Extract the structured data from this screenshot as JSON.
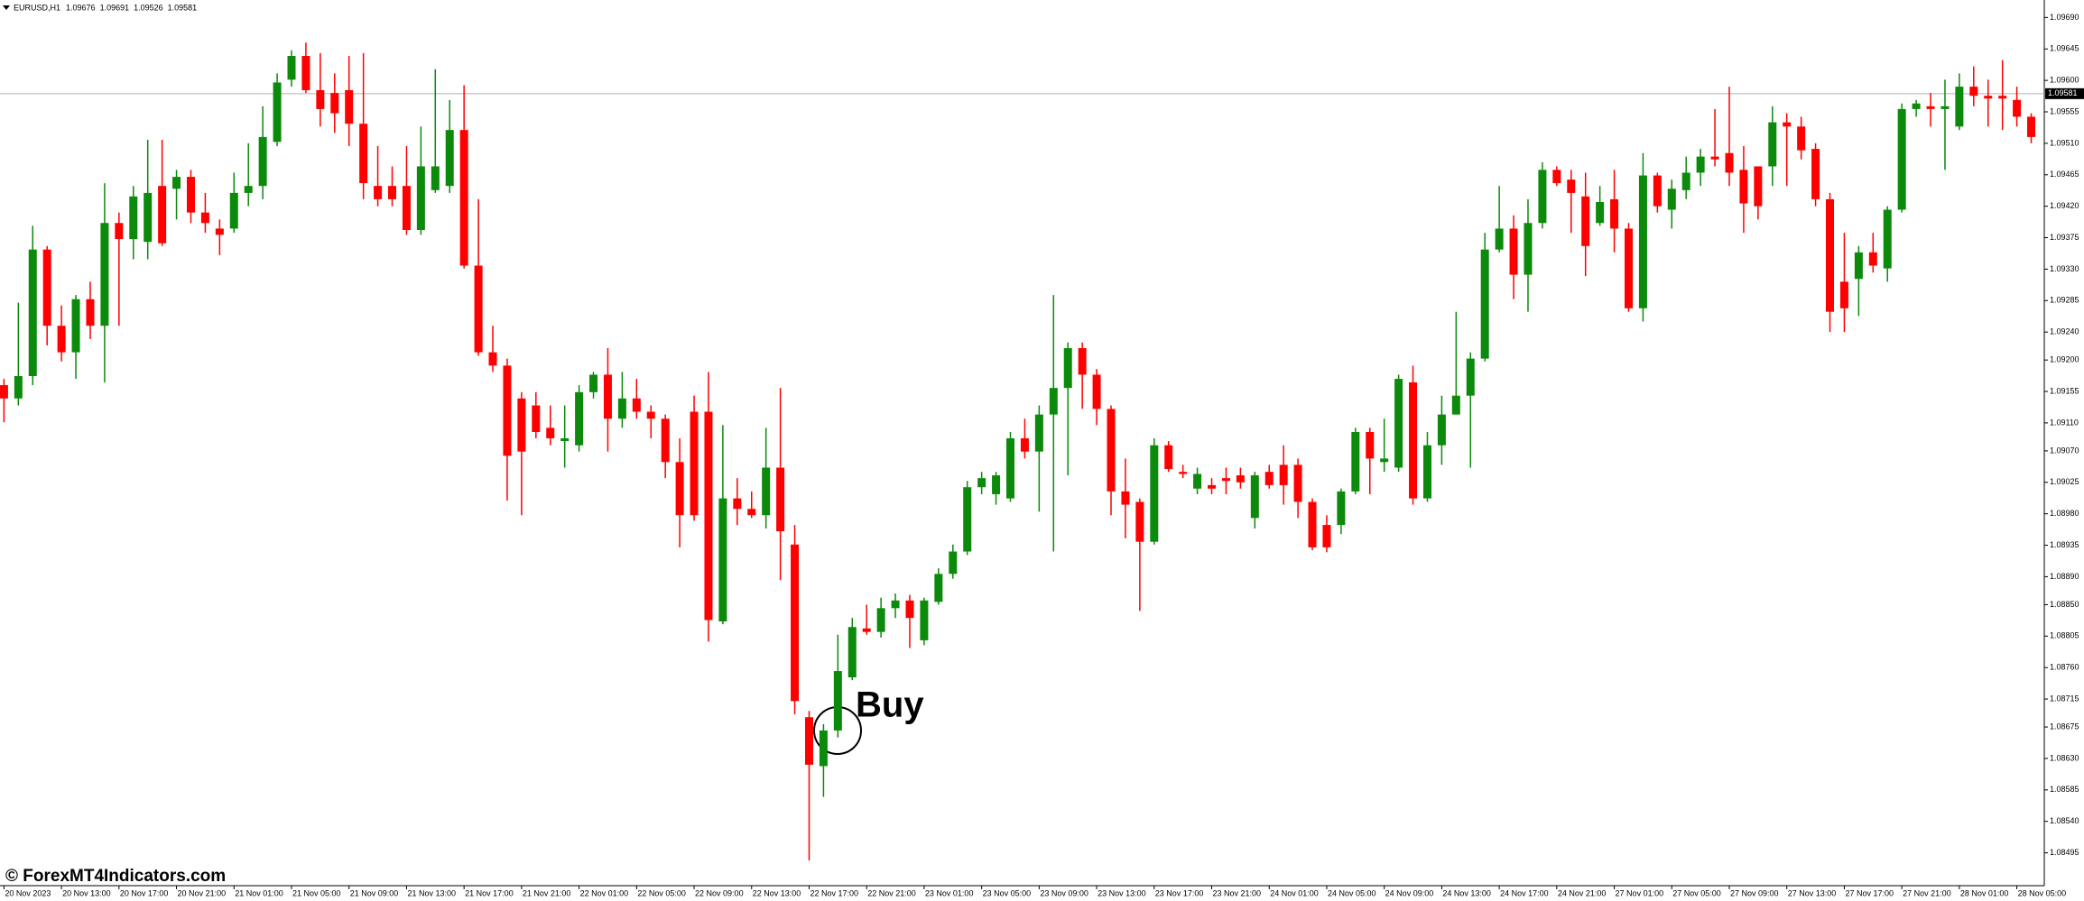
{
  "chart_data": {
    "type": "candlestick",
    "symbol": "EURUSD,H1",
    "header_values": [
      1.09676,
      1.09691,
      1.09526,
      1.09581
    ],
    "annotation": "Buy",
    "watermark": "© ForexMT4Indicators.com",
    "current_price": 1.09581,
    "up_color": "#0b8a0b",
    "down_color": "#ff0000",
    "ylim": [
      1.08448,
      1.09715
    ],
    "yticks": [
      {
        "value": 1.0969,
        "label": "1.09690"
      },
      1.09645,
      {
        "value": 1.096,
        "label": "1.09600"
      },
      1.09555,
      {
        "value": 1.0951,
        "label": "1.09510"
      },
      1.09465,
      {
        "value": 1.0942,
        "label": "1.09420"
      },
      1.09375,
      {
        "value": 1.0933,
        "label": "1.09330"
      },
      1.09285,
      {
        "value": 1.0924,
        "label": "1.09240"
      },
      {
        "value": 1.092,
        "label": "1.09200"
      },
      1.09155,
      {
        "value": 1.0911,
        "label": "1.09110"
      },
      {
        "value": 1.0907,
        "label": "1.09070"
      },
      1.09025,
      {
        "value": 1.0898,
        "label": "1.08980"
      },
      1.08935,
      {
        "value": 1.0889,
        "label": "1.08890"
      },
      {
        "value": 1.0885,
        "label": "1.08850"
      },
      1.08805,
      {
        "value": 1.0876,
        "label": "1.08760"
      },
      1.08715,
      1.08675,
      {
        "value": 1.0863,
        "label": "1.08630"
      },
      1.08585,
      {
        "value": 1.0854,
        "label": "1.08540"
      },
      1.08495
    ],
    "categories": [
      "20 Nov 2023",
      null,
      null,
      null,
      "20 Nov 13:00",
      null,
      null,
      null,
      "20 Nov 17:00",
      null,
      null,
      null,
      "20 Nov 21:00",
      null,
      null,
      null,
      "21 Nov 01:00",
      null,
      null,
      null,
      "21 Nov 05:00",
      null,
      null,
      null,
      "21 Nov 09:00",
      null,
      null,
      null,
      "21 Nov 13:00",
      null,
      null,
      null,
      "21 Nov 17:00",
      null,
      null,
      null,
      "21 Nov 21:00",
      null,
      null,
      null,
      "22 Nov 01:00",
      null,
      null,
      null,
      "22 Nov 05:00",
      null,
      null,
      null,
      "22 Nov 09:00",
      null,
      null,
      null,
      "22 Nov 13:00",
      null,
      null,
      null,
      "22 Nov 17:00",
      null,
      null,
      null,
      "22 Nov 21:00",
      null,
      null,
      null,
      "23 Nov 01:00",
      null,
      null,
      null,
      "23 Nov 05:00",
      null,
      null,
      null,
      "23 Nov 09:00",
      null,
      null,
      null,
      "23 Nov 13:00",
      null,
      null,
      null,
      "23 Nov 17:00",
      null,
      null,
      null,
      "23 Nov 21:00",
      null,
      null,
      null,
      "24 Nov 01:00",
      null,
      null,
      null,
      "24 Nov 05:00",
      null,
      null,
      null,
      "24 Nov 09:00",
      null,
      null,
      null,
      "24 Nov 13:00",
      null,
      null,
      null,
      "24 Nov 17:00",
      null,
      null,
      null,
      "24 Nov 21:00",
      null,
      null,
      null,
      "27 Nov 01:00",
      null,
      null,
      null,
      "27 Nov 05:00",
      null,
      null,
      null,
      "27 Nov 09:00",
      null,
      null,
      null,
      "27 Nov 13:00",
      null,
      null,
      null,
      "27 Nov 17:00",
      null,
      null,
      null,
      "27 Nov 21:00",
      null,
      null,
      null,
      "28 Nov 01:00",
      null,
      null,
      null,
      "28 Nov 05:00",
      null
    ],
    "ohlc": [
      [
        1.09164,
        1.09173,
        1.09111,
        1.09145
      ],
      [
        1.09145,
        1.09282,
        1.09135,
        1.09177
      ],
      [
        1.09177,
        1.09392,
        1.09164,
        1.09358
      ],
      [
        1.09358,
        1.09363,
        1.09221,
        1.09249
      ],
      [
        1.09249,
        1.09278,
        1.09198,
        1.09211
      ],
      [
        1.09211,
        1.09293,
        1.09173,
        1.09287
      ],
      [
        1.09287,
        1.09312,
        1.0923,
        1.09249
      ],
      [
        1.09249,
        1.09453,
        1.09168,
        1.09396
      ],
      [
        1.09396,
        1.09411,
        1.09249,
        1.09373
      ],
      [
        1.09373,
        1.09449,
        1.09344,
        1.09434
      ],
      [
        1.09369,
        1.09515,
        1.09344,
        1.09439
      ],
      [
        1.09449,
        1.09515,
        1.09363,
        1.09367
      ],
      [
        1.09445,
        1.09472,
        1.09401,
        1.09462
      ],
      [
        1.09462,
        1.09472,
        1.09396,
        1.09411
      ],
      [
        1.09411,
        1.09439,
        1.09382,
        1.09396
      ],
      [
        1.09388,
        1.09401,
        1.0935,
        1.09379
      ],
      [
        1.09388,
        1.09468,
        1.09382,
        1.09439
      ],
      [
        1.09439,
        1.0951,
        1.0942,
        1.09449
      ],
      [
        1.09449,
        1.09563,
        1.0943,
        1.09519
      ],
      [
        1.09512,
        1.0961,
        1.09506,
        1.09597
      ],
      [
        1.09601,
        1.09643,
        1.09591,
        1.09635
      ],
      [
        1.09635,
        1.09654,
        1.09582,
        1.09586
      ],
      [
        1.09586,
        1.09639,
        1.09534,
        1.09559
      ],
      [
        1.09582,
        1.0961,
        1.09525,
        1.09553
      ],
      [
        1.09586,
        1.09635,
        1.09506,
        1.09538
      ],
      [
        1.09538,
        1.09639,
        1.0943,
        1.09453
      ],
      [
        1.09449,
        1.09506,
        1.0942,
        1.0943
      ],
      [
        1.09449,
        1.09477,
        1.0942,
        1.0943
      ],
      [
        1.09449,
        1.09506,
        1.09379,
        1.09386
      ],
      [
        1.09386,
        1.09534,
        1.09379,
        1.09477
      ],
      [
        1.09443,
        1.09616,
        1.09439,
        1.09477
      ],
      [
        1.09449,
        1.09572,
        1.09439,
        1.09529
      ],
      [
        1.09529,
        1.09593,
        1.09331,
        1.09335
      ],
      [
        1.09335,
        1.0943,
        1.09206,
        1.09211
      ],
      [
        1.09211,
        1.09249,
        1.09183,
        1.09192
      ],
      [
        1.09192,
        1.09202,
        1.08999,
        1.09063
      ],
      [
        1.09145,
        1.09154,
        1.08978,
        1.09069
      ],
      [
        1.09135,
        1.09154,
        1.09088,
        1.09097
      ],
      [
        1.09103,
        1.09135,
        1.09078,
        1.09088
      ],
      [
        1.09084,
        1.09135,
        1.09046,
        1.09088
      ],
      [
        1.09078,
        1.09164,
        1.09069,
        1.09154
      ],
      [
        1.09154,
        1.09183,
        1.09145,
        1.09179
      ],
      [
        1.09179,
        1.09217,
        1.09069,
        1.09116
      ],
      [
        1.09116,
        1.09183,
        1.09103,
        1.09145
      ],
      [
        1.09145,
        1.09173,
        1.09116,
        1.09126
      ],
      [
        1.09126,
        1.09135,
        1.09088,
        1.09116
      ],
      [
        1.09116,
        1.09122,
        1.09031,
        1.09054
      ],
      [
        1.09054,
        1.09088,
        1.08932,
        1.08978
      ],
      [
        1.09126,
        1.09149,
        1.0897,
        1.08978
      ],
      [
        1.09126,
        1.09183,
        1.08797,
        1.08828
      ],
      [
        1.08826,
        1.09107,
        1.08822,
        1.09002
      ],
      [
        1.09002,
        1.09031,
        1.08964,
        1.08987
      ],
      [
        1.08987,
        1.09012,
        1.08974,
        1.08978
      ],
      [
        1.08978,
        1.09103,
        1.08959,
        1.09046
      ],
      [
        1.09046,
        1.0916,
        1.08885,
        1.08955
      ],
      [
        1.08936,
        1.08964,
        1.08693,
        1.08712
      ],
      [
        1.08689,
        1.08698,
        1.08484,
        1.08621
      ],
      [
        1.08619,
        1.08679,
        1.08575,
        1.0867
      ],
      [
        1.0867,
        1.08807,
        1.0866,
        1.08755
      ],
      [
        1.08746,
        1.08831,
        1.08742,
        1.08818
      ],
      [
        1.08816,
        1.0885,
        1.08807,
        1.08811
      ],
      [
        1.08811,
        1.0886,
        1.08803,
        1.08845
      ],
      [
        1.08845,
        1.08866,
        1.08831,
        1.08856
      ],
      [
        1.08856,
        1.08864,
        1.08788,
        1.08831
      ],
      [
        1.08799,
        1.0886,
        1.08792,
        1.08856
      ],
      [
        1.08854,
        1.08902,
        1.0885,
        1.08894
      ],
      [
        1.08894,
        1.08936,
        1.08887,
        1.08926
      ],
      [
        1.08926,
        1.09027,
        1.08921,
        1.09018
      ],
      [
        1.09018,
        1.0904,
        1.09008,
        1.09031
      ],
      [
        1.09008,
        1.0904,
        1.08993,
        1.09035
      ],
      [
        1.09002,
        1.09097,
        1.08997,
        1.09088
      ],
      [
        1.09088,
        1.09116,
        1.09059,
        1.09069
      ],
      [
        1.09069,
        1.09135,
        1.08983,
        1.09122
      ],
      [
        1.09122,
        1.09293,
        1.08926,
        1.0916
      ],
      [
        1.0916,
        1.09225,
        1.09035,
        1.09217
      ],
      [
        1.09217,
        1.09225,
        1.0913,
        1.09179
      ],
      [
        1.09179,
        1.09187,
        1.09107,
        1.0913
      ],
      [
        1.0913,
        1.09135,
        1.08978,
        1.09012
      ],
      [
        1.09012,
        1.09059,
        1.08945,
        1.08993
      ],
      [
        1.08997,
        1.09002,
        1.08841,
        1.0894
      ],
      [
        1.0894,
        1.09088,
        1.08936,
        1.09078
      ],
      [
        1.09078,
        1.09084,
        1.0904,
        1.09044
      ],
      [
        1.0904,
        1.0905,
        1.09031,
        1.09037
      ],
      [
        1.09016,
        1.09046,
        1.09008,
        1.09037
      ],
      [
        1.09021,
        1.09031,
        1.09008,
        1.09016
      ],
      [
        1.09031,
        1.09046,
        1.09008,
        1.09027
      ],
      [
        1.09035,
        1.09046,
        1.09016,
        1.09025
      ],
      [
        1.08974,
        1.0904,
        1.08959,
        1.09035
      ],
      [
        1.0904,
        1.0905,
        1.09016,
        1.09021
      ],
      [
        1.0905,
        1.09078,
        1.08993,
        1.09021
      ],
      [
        1.0905,
        1.09059,
        1.08974,
        1.08997
      ],
      [
        1.08997,
        1.09002,
        1.08928,
        1.08932
      ],
      [
        1.08964,
        1.08978,
        1.08925,
        1.08932
      ],
      [
        1.08964,
        1.09016,
        1.08951,
        1.09012
      ],
      [
        1.09012,
        1.09103,
        1.09008,
        1.09097
      ],
      [
        1.09097,
        1.09103,
        1.09008,
        1.09059
      ],
      [
        1.09054,
        1.09116,
        1.0904,
        1.09059
      ],
      [
        1.09046,
        1.09179,
        1.0904,
        1.09173
      ],
      [
        1.09168,
        1.09192,
        1.08993,
        1.09002
      ],
      [
        1.09002,
        1.09097,
        1.08997,
        1.09078
      ],
      [
        1.09078,
        1.09149,
        1.0905,
        1.09122
      ],
      [
        1.09122,
        1.09269,
        1.09122,
        1.09149
      ],
      [
        1.09149,
        1.09211,
        1.09046,
        1.09202
      ],
      [
        1.09202,
        1.09382,
        1.09198,
        1.09358
      ],
      [
        1.09358,
        1.09449,
        1.09354,
        1.09388
      ],
      [
        1.09388,
        1.09407,
        1.09287,
        1.09322
      ],
      [
        1.09322,
        1.0943,
        1.09269,
        1.09396
      ],
      [
        1.09396,
        1.09483,
        1.09388,
        1.09472
      ],
      [
        1.09472,
        1.09477,
        1.09449,
        1.09453
      ],
      [
        1.09458,
        1.09472,
        1.09382,
        1.09439
      ],
      [
        1.09434,
        1.09468,
        1.0932,
        1.09363
      ],
      [
        1.09396,
        1.09449,
        1.09392,
        1.09426
      ],
      [
        1.0943,
        1.09472,
        1.09354,
        1.09388
      ],
      [
        1.09388,
        1.09396,
        1.09269,
        1.09274
      ],
      [
        1.09274,
        1.09496,
        1.09255,
        1.09464
      ],
      [
        1.09464,
        1.09468,
        1.09411,
        1.0942
      ],
      [
        1.09415,
        1.09458,
        1.09388,
        1.09445
      ],
      [
        1.09443,
        1.09491,
        1.0943,
        1.09468
      ],
      [
        1.09468,
        1.09502,
        1.09449,
        1.09491
      ],
      [
        1.09491,
        1.09559,
        1.09477,
        1.09487
      ],
      [
        1.09496,
        1.09591,
        1.09449,
        1.09468
      ],
      [
        1.09472,
        1.09506,
        1.09382,
        1.09424
      ],
      [
        1.09477,
        1.09477,
        1.09401,
        1.0942
      ],
      [
        1.09477,
        1.09563,
        1.09449,
        1.0954
      ],
      [
        1.0954,
        1.09553,
        1.09449,
        1.09534
      ],
      [
        1.09534,
        1.09548,
        1.09487,
        1.095
      ],
      [
        1.09502,
        1.0951,
        1.0942,
        1.0943
      ],
      [
        1.0943,
        1.09439,
        1.0924,
        1.09269
      ],
      [
        1.09312,
        1.09382,
        1.0924,
        1.09274
      ],
      [
        1.09316,
        1.09363,
        1.09263,
        1.09354
      ],
      [
        1.09354,
        1.09382,
        1.09325,
        1.09335
      ],
      [
        1.09331,
        1.0942,
        1.09312,
        1.09415
      ],
      [
        1.09415,
        1.09567,
        1.09411,
        1.09559
      ],
      [
        1.09559,
        1.09572,
        1.09548,
        1.09567
      ],
      [
        1.09563,
        1.09582,
        1.09534,
        1.09559
      ],
      [
        1.09559,
        1.09601,
        1.09472,
        1.09563
      ],
      [
        1.09534,
        1.0961,
        1.09529,
        1.09591
      ],
      [
        1.09591,
        1.0962,
        1.09563,
        1.09578
      ],
      [
        1.09578,
        1.09601,
        1.09534,
        1.09574
      ],
      [
        1.09578,
        1.09629,
        1.09529,
        1.09574
      ],
      [
        1.09572,
        1.09591,
        1.09534,
        1.09548
      ],
      [
        1.09548,
        1.09553,
        1.0951,
        1.09519
      ]
    ]
  }
}
